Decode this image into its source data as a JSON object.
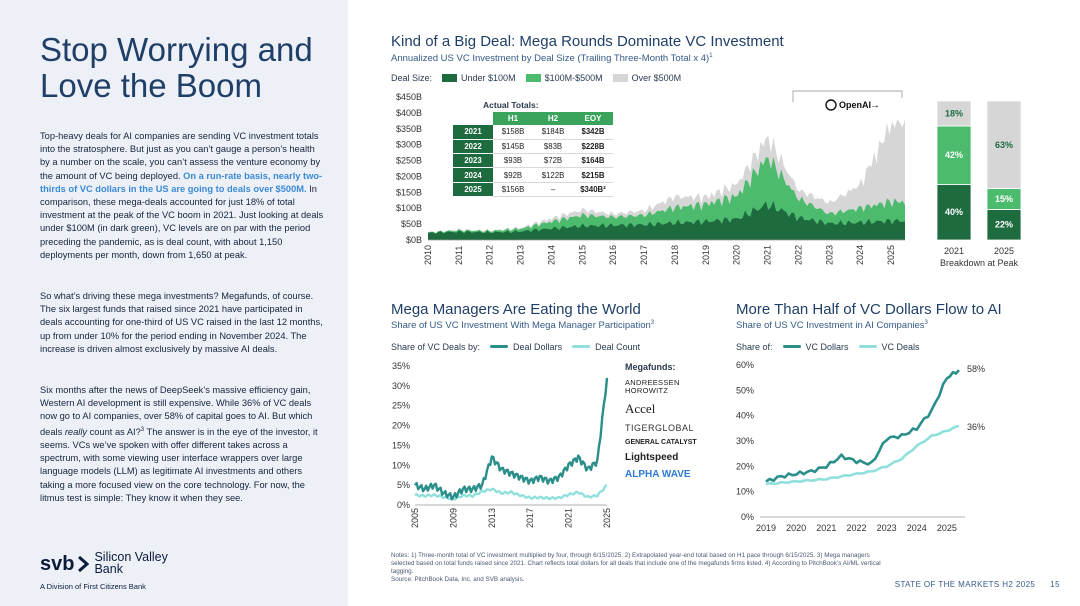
{
  "page": {
    "title": "Stop Worrying and Love the Boom",
    "para1_a": "Top-heavy deals for AI companies are sending VC investment totals into the stratosphere. But just as you can’t gauge a person’s health by a number on the scale, you can’t assess the venture economy by the amount of VC being deployed. ",
    "para1_hl": "On a run-rate basis, nearly two-thirds of VC dollars in the US are going to deals over $500M.",
    "para1_b": " In comparison, these mega-deals accounted for just 18% of total investment at the peak of the VC boom in 2021. Just looking at deals under $100M (in dark green), VC levels are on par with the period preceding the pandemic, as is deal count, with about 1,150 deployments per month, down from 1,650 at peak.",
    "para2": "So what’s driving these mega investments? Megafunds, of course. The six largest funds that raised since 2021 have participated in deals accounting for one-third of US VC raised in the last 12 months, up from under 10% for the period ending in November 2024. The increase is driven almost exclusively by massive AI deals.",
    "para3_a": "Six months after the news of DeepSeek’s massive efficiency gain, Western AI development is still expensive. While 36% of VC deals now go to AI companies, over 58% of capital goes to AI. But which deals ",
    "para3_em": "really",
    "para3_b": " count as AI?",
    "para3_sup": "3",
    "para3_c": " The answer is in the eye of the investor, it seems. VCs we’ve spoken with offer different takes across a spectrum, with some viewing user interface wrappers over large language models (LLM) as legitimate AI investments and others taking a more focused view on the core technology. For now, the litmus test is simple: They know it when they see.",
    "logo_svb": "svb",
    "logo_line1": "Silicon Valley",
    "logo_line2": "Bank",
    "logo_sub": "A Division of First Citizens Bank",
    "notes": "Notes: 1) Three-month total of VC investment multiplied by four, through 6/15/2025. 2) Extrapolated year-end total based on H1 pace through 6/15/2025. 3) Mega managers selected based on total funds raised since 2021. Chart reflects total dollars for all deals that include one of the megafunds firms listed. 4) According to PitchBook’s AI/ML vertical tagging.",
    "source": "Source: PitchBook Data, Inc. and SVB analysis.",
    "footer_label": "STATE OF THE MARKETS H2 2025",
    "page_number": "15"
  },
  "colors": {
    "dark_green": "#1d6b3f",
    "mid_green": "#4dbb6d",
    "gray": "#d6d6d6",
    "teal": "#2a8f8a",
    "light_teal": "#8fe0dc",
    "navy": "#1f3f67",
    "highlight": "#3a8bd6"
  },
  "chart1": {
    "title": "Kind of a Big Deal: Mega Rounds Dominate VC Investment",
    "subtitle": "Annualized US VC Investment by Deal Size (Trailing Three-Month Total x 4)",
    "subtitle_sup": "1",
    "legend_label": "Deal Size:",
    "legend": [
      "Under $100M",
      "$100M-$500M",
      "Over $500M"
    ],
    "annotation": "OpenAI",
    "annotation_arrow": "→",
    "totals_caption": "Actual Totals:",
    "totals_headers": [
      "H1",
      "H2",
      "EOY"
    ],
    "totals_rows": [
      {
        "year": "2021",
        "h1": "$158B",
        "h2": "$184B",
        "eoy": "$342B"
      },
      {
        "year": "2022",
        "h1": "$145B",
        "h2": "$83B",
        "eoy": "$228B"
      },
      {
        "year": "2023",
        "h1": "$93B",
        "h2": "$72B",
        "eoy": "$164B"
      },
      {
        "year": "2024",
        "h1": "$92B",
        "h2": "$122B",
        "eoy": "$215B"
      },
      {
        "year": "2025",
        "h1": "$156B",
        "h2": "–",
        "eoy": "$340B²"
      }
    ],
    "breakdown_label": "Breakdown at Peak"
  },
  "chart_data": [
    {
      "type": "area",
      "title": "Kind of a Big Deal: Mega Rounds Dominate VC Investment",
      "x": [
        2010,
        2011,
        2012,
        2013,
        2014,
        2015,
        2016,
        2017,
        2018,
        2019,
        2020,
        2021,
        2022,
        2023,
        2024,
        2025
      ],
      "series": [
        {
          "name": "Under $100M",
          "values": [
            22,
            26,
            24,
            27,
            36,
            44,
            46,
            48,
            54,
            58,
            66,
            112,
            70,
            52,
            55,
            60
          ]
        },
        {
          "name": "$100M-$500M",
          "values": [
            2,
            4,
            4,
            8,
            22,
            34,
            26,
            30,
            48,
            54,
            72,
            148,
            60,
            30,
            45,
            60
          ]
        },
        {
          "name": "Over $500M",
          "values": [
            0,
            2,
            1,
            3,
            8,
            14,
            8,
            12,
            28,
            18,
            30,
            52,
            22,
            28,
            60,
            200
          ]
        }
      ],
      "yticks": [
        "$0B",
        "$50B",
        "$100B",
        "$150B",
        "$200B",
        "$250B",
        "$300B",
        "$350B",
        "$400B",
        "$450B"
      ],
      "ylim": [
        0,
        450
      ],
      "xticks": [
        "2010",
        "2011",
        "2012",
        "2013",
        "2014",
        "2015",
        "2016",
        "2017",
        "2018",
        "2019",
        "2020",
        "2021",
        "2022",
        "2023",
        "2024",
        "2025"
      ]
    },
    {
      "type": "bar",
      "title": "Breakdown at Peak",
      "categories": [
        "2021",
        "2025"
      ],
      "series": [
        {
          "name": "Under $100M",
          "values": [
            40,
            22
          ]
        },
        {
          "name": "$100M-$500M",
          "values": [
            42,
            15
          ]
        },
        {
          "name": "Over $500M",
          "values": [
            18,
            63
          ]
        }
      ],
      "labels": [
        [
          "40%",
          "42%",
          "18%"
        ],
        [
          "22%",
          "15%",
          "63%"
        ]
      ]
    },
    {
      "type": "line",
      "title": "Mega Managers Are Eating the World",
      "subtitle": "Share of US VC Investment With Mega Manager Participation",
      "x": [
        2005,
        2006,
        2007,
        2008,
        2009,
        2010,
        2011,
        2012,
        2013,
        2014,
        2015,
        2016,
        2017,
        2018,
        2019,
        2020,
        2021,
        2022,
        2023,
        2024,
        2025
      ],
      "series": [
        {
          "name": "Deal Dollars",
          "values": [
            5,
            4,
            5,
            3,
            2,
            4,
            4,
            5,
            12,
            9,
            8,
            7,
            6,
            7,
            6,
            7,
            10,
            12,
            9,
            11,
            32
          ]
        },
        {
          "name": "Deal Count",
          "values": [
            2.5,
            2.3,
            2.5,
            2.0,
            1.5,
            2.4,
            2.3,
            3.4,
            4.0,
            3.0,
            3.2,
            2.4,
            1.8,
            1.9,
            1.7,
            1.8,
            2.6,
            3.2,
            2.0,
            2.4,
            5
          ]
        }
      ],
      "ylim": [
        0,
        35
      ],
      "yticks": [
        "0%",
        "5%",
        "10%",
        "15%",
        "20%",
        "25%",
        "30%",
        "35%"
      ],
      "xticks": [
        "2005",
        "2009",
        "2013",
        "2017",
        "2021",
        "2025"
      ]
    },
    {
      "type": "line",
      "title": "More Than Half of VC Dollars Flow to AI",
      "subtitle": "Share of US VC Investment in AI Companies",
      "x": [
        2019,
        2019.5,
        2020,
        2020.5,
        2021,
        2021.5,
        2022,
        2022.5,
        2023,
        2023.5,
        2024,
        2024.5,
        2025,
        2025.4
      ],
      "series": [
        {
          "name": "VC Dollars",
          "values": [
            14,
            16,
            17,
            18,
            20,
            24,
            22,
            21,
            31,
            32,
            35,
            42,
            55,
            58
          ]
        },
        {
          "name": "VC Deals",
          "values": [
            13,
            13.5,
            14,
            14.5,
            15,
            16,
            17,
            18,
            20,
            23,
            28,
            32,
            34,
            36
          ]
        }
      ],
      "end_labels": [
        "58%",
        "36%"
      ],
      "ylim": [
        0,
        60
      ],
      "yticks": [
        "0%",
        "10%",
        "20%",
        "30%",
        "40%",
        "50%",
        "60%"
      ],
      "xticks": [
        "2019",
        "2020",
        "2021",
        "2022",
        "2023",
        "2024",
        "2025"
      ]
    }
  ],
  "chart2": {
    "title": "Mega Managers Are Eating the World",
    "subtitle": "Share of US VC Investment With Mega Manager Participation",
    "subtitle_sup": "3",
    "legend_label": "Share of VC Deals by:",
    "legend": [
      "Deal Dollars",
      "Deal Count"
    ],
    "megafunds_title": "Megafunds:",
    "megafunds": [
      "ANDREESSEN HOROWITZ",
      "Accel",
      "TIGERGLOBAL",
      "GENERAL CATALYST",
      "Lightspeed",
      "ALPHA WAVE"
    ]
  },
  "chart3": {
    "title": "More Than Half of VC Dollars Flow to AI",
    "subtitle": "Share of US VC Investment in AI Companies",
    "subtitle_sup": "3",
    "legend_label": "Share of:",
    "legend": [
      "VC Dollars",
      "VC Deals"
    ]
  }
}
